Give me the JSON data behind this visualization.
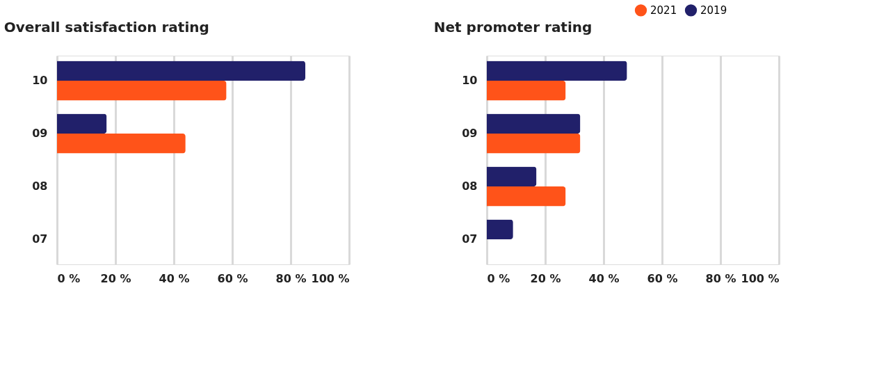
{
  "chart_data": [
    {
      "type": "bar",
      "orientation": "horizontal",
      "title": "Overall satisfaction rating",
      "categories": [
        "10",
        "09",
        "08",
        "07"
      ],
      "series": [
        {
          "name": "2021",
          "color": "#ff5319",
          "values": [
            58,
            44,
            null,
            null
          ]
        },
        {
          "name": "2019",
          "color": "#21206a",
          "values": [
            85,
            17,
            null,
            null
          ]
        }
      ],
      "xlim": [
        0,
        100
      ],
      "xticks": [
        {
          "value": 0,
          "label": "0 %"
        },
        {
          "value": 20,
          "label": "20 %"
        },
        {
          "value": 40,
          "label": "40 %"
        },
        {
          "value": 60,
          "label": "60 %"
        },
        {
          "value": 80,
          "label": "80 %"
        },
        {
          "value": 100,
          "label": "100 %"
        }
      ],
      "grid": "x",
      "legend": "top right"
    },
    {
      "type": "bar",
      "orientation": "horizontal",
      "title": "Net promoter rating",
      "categories": [
        "10",
        "09",
        "08",
        "07"
      ],
      "series": [
        {
          "name": "2021",
          "color": "#ff5319",
          "values": [
            27,
            32,
            27,
            null
          ]
        },
        {
          "name": "2019",
          "color": "#21206a",
          "values": [
            48,
            32,
            17,
            9
          ]
        }
      ],
      "xlim": [
        0,
        100
      ],
      "xticks": [
        {
          "value": 0,
          "label": "0 %"
        },
        {
          "value": 20,
          "label": "20 %"
        },
        {
          "value": 40,
          "label": "40 %"
        },
        {
          "value": 60,
          "label": "60 %"
        },
        {
          "value": 80,
          "label": "80 %"
        },
        {
          "value": 100,
          "label": "100 %"
        }
      ],
      "grid": "x",
      "legend": "top right"
    }
  ]
}
